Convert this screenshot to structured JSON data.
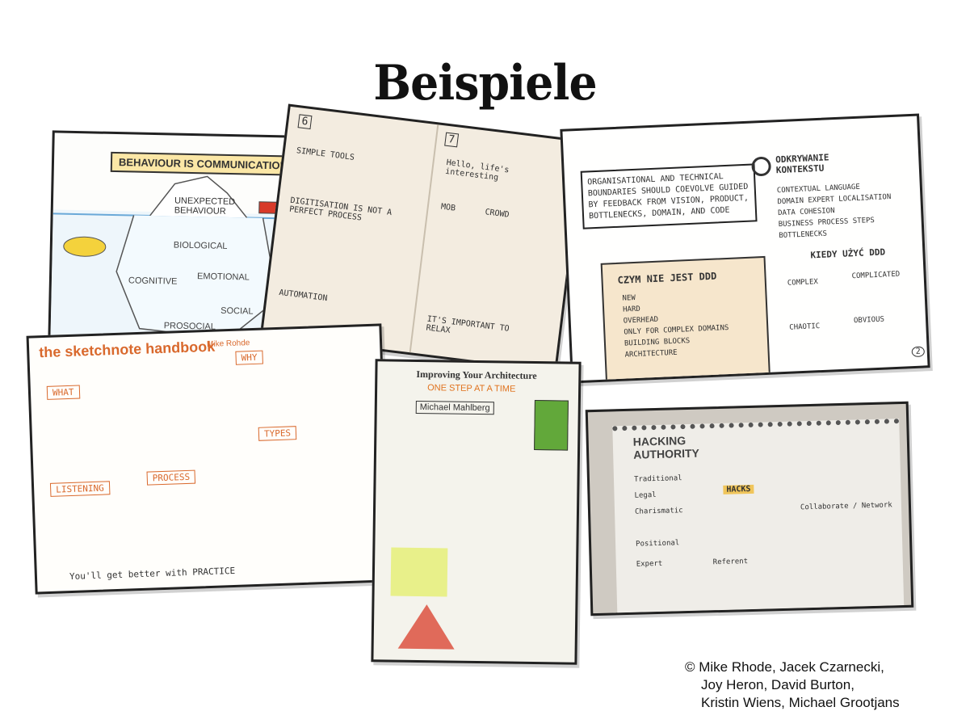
{
  "slide": {
    "title": "Beispiele",
    "credits": [
      "© Mike Rhode, Jacek Czarnecki,",
      "Joy Heron, David Burton,",
      "Kristin Wiens, Michael Grootjans"
    ]
  },
  "sketches": {
    "behaviour": {
      "banner": "BEHAVIOUR IS COMMUNICATION",
      "top": "UNEXPECTED BEHAVIOUR",
      "labels": [
        "BIOLOGICAL",
        "COGNITIVE",
        "EMOTIONAL",
        "SOCIAL",
        "PROSOCIAL"
      ]
    },
    "notebook": {
      "left_header": "6",
      "right_header": "7",
      "left_items": [
        "SIMPLE TOOLS",
        "DIGITISATION IS NOT A PERFECT PROCESS",
        "AUTOMATION"
      ],
      "right_items": [
        "Hello, life's interesting",
        "MOB",
        "CROWD",
        "IT'S IMPORTANT TO RELAX"
      ]
    },
    "ddd": {
      "quote": "ORGANISATIONAL AND TECHNICAL BOUNDARIES SHOULD COEVOLVE GUIDED BY FEEDBACK FROM VISION, PRODUCT, BOTTLENECKS, DOMAIN, AND CODE",
      "context_title": "ODKRYWANIE KONTEKSTU",
      "context_items": [
        "CONTEXTUAL LANGUAGE",
        "DOMAIN EXPERT LOCALISATION",
        "DATA COHESION",
        "BUSINESS PROCESS STEPS",
        "BOTTLENECKS"
      ],
      "notdd_title": "CZYM NIE JEST DDD",
      "notdd_items": [
        "NEW",
        "HARD",
        "OVERHEAD",
        "ONLY FOR COMPLEX DOMAINS",
        "BUILDING BLOCKS",
        "ARCHITECTURE"
      ],
      "when_title": "KIEDY UŻYĆ DDD",
      "quadrants": [
        "COMPLEX",
        "COMPLICATED",
        "CHAOTIC",
        "OBVIOUS"
      ],
      "page": "2"
    },
    "handbook": {
      "title": "the sketchnote handbook",
      "author": "Mike Rohde",
      "sections": [
        "WHAT",
        "WHY",
        "LISTENING",
        "PROCESS",
        "TYPES"
      ],
      "footer": "You'll get better with PRACTICE"
    },
    "architecture": {
      "title": "Improving Your Architecture",
      "subtitle": "ONE STEP AT A TIME",
      "speaker": "Michael Mahlberg"
    },
    "hacking": {
      "title": "HACKING AUTHORITY",
      "items": [
        "Traditional",
        "Legal",
        "Charismatic",
        "Positional",
        "Expert",
        "Referent",
        "HACKS",
        "Collaborate / Network"
      ]
    }
  }
}
